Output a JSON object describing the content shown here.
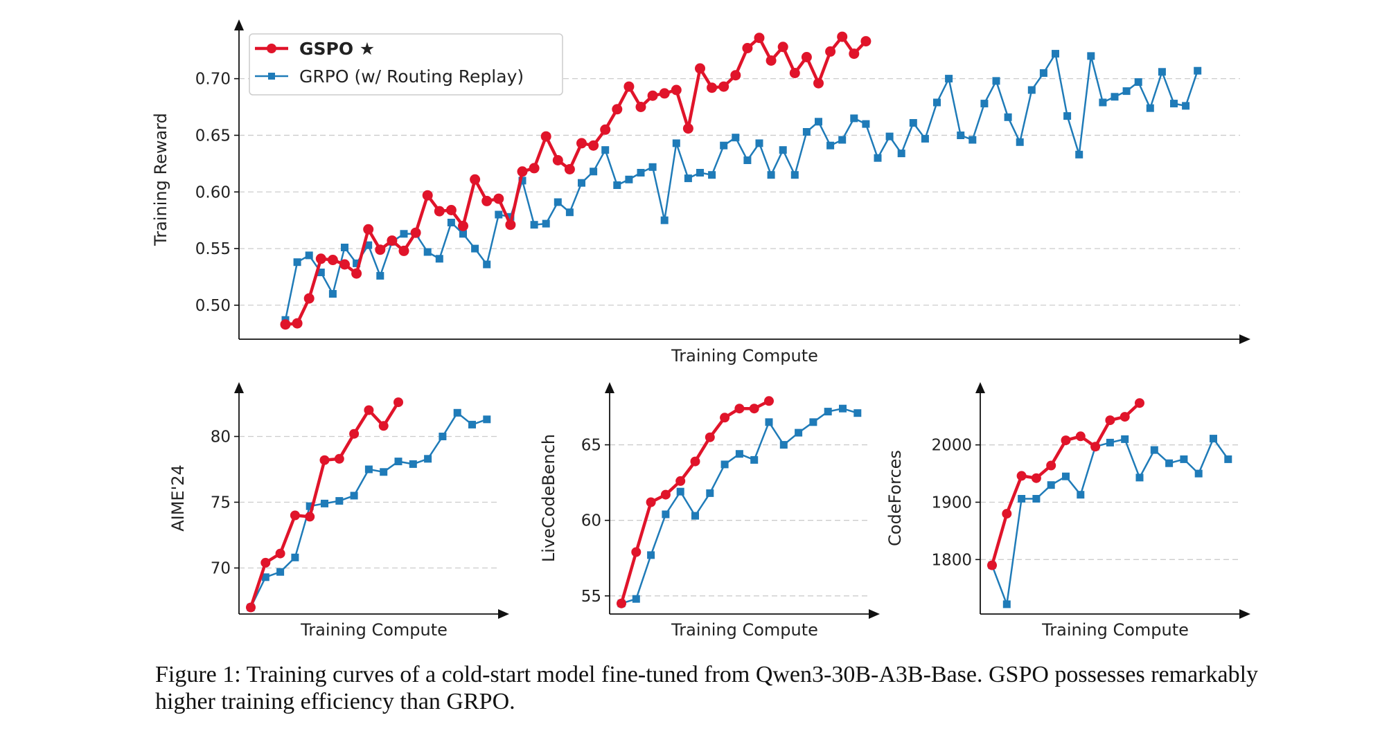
{
  "colors": {
    "gspo": "#e0142a",
    "grpo": "#1f7bb8",
    "axis": "#111111",
    "grid": "#cccccc"
  },
  "caption": "Figure 1: Training curves of a cold-start model fine-tuned from Qwen3-30B-A3B-Base. GSPO possesses remarkably higher training efficiency than GRPO.",
  "legend": {
    "gspo_label": "GSPO ★",
    "grpo_label": "GRPO (w/ Routing Replay)"
  },
  "chart_data": [
    {
      "type": "line",
      "xlabel": "Training Compute",
      "ylabel": "Training Reward",
      "ylim": [
        0.47,
        0.745
      ],
      "yticks": [
        0.5,
        0.55,
        0.6,
        0.65,
        0.7
      ],
      "ytick_labels": [
        "0.50",
        "0.55",
        "0.60",
        "0.65",
        "0.70"
      ],
      "grid": "horizontal-dashed",
      "legend_position": "top-left",
      "series": [
        {
          "name": "GSPO ★",
          "values": [
            0.483,
            0.484,
            0.506,
            0.541,
            0.54,
            0.536,
            0.528,
            0.567,
            0.549,
            0.557,
            0.548,
            0.564,
            0.597,
            0.583,
            0.584,
            0.57,
            0.611,
            0.592,
            0.594,
            0.571,
            0.618,
            0.621,
            0.649,
            0.628,
            0.62,
            0.643,
            0.641,
            0.655,
            0.673,
            0.693,
            0.675,
            0.685,
            0.687,
            0.69,
            0.656,
            0.709,
            0.692,
            0.693,
            0.703,
            0.727,
            0.736,
            0.716,
            0.728,
            0.705,
            0.719,
            0.696,
            0.724,
            0.737,
            0.722,
            0.733
          ]
        },
        {
          "name": "GRPO (w/ Routing Replay)",
          "values": [
            0.487,
            0.538,
            0.544,
            0.529,
            0.51,
            0.551,
            0.537,
            0.553,
            0.526,
            0.556,
            0.563,
            0.563,
            0.547,
            0.541,
            0.573,
            0.563,
            0.55,
            0.536,
            0.58,
            0.578,
            0.61,
            0.571,
            0.572,
            0.591,
            0.582,
            0.608,
            0.618,
            0.637,
            0.606,
            0.611,
            0.617,
            0.622,
            0.575,
            0.643,
            0.612,
            0.617,
            0.615,
            0.641,
            0.648,
            0.628,
            0.643,
            0.615,
            0.637,
            0.615,
            0.653,
            0.662,
            0.641,
            0.646,
            0.665,
            0.66,
            0.63,
            0.649,
            0.634,
            0.661,
            0.647,
            0.679,
            0.7,
            0.65,
            0.646,
            0.678,
            0.698,
            0.666,
            0.644,
            0.69,
            0.705,
            0.722,
            0.667,
            0.633,
            0.72,
            0.679,
            0.684,
            0.689,
            0.697,
            0.674,
            0.706,
            0.678,
            0.676,
            0.707
          ]
        }
      ]
    },
    {
      "type": "line",
      "xlabel": "Training Compute",
      "ylabel": "AIME'24",
      "ylim": [
        66.5,
        83.5
      ],
      "yticks": [
        70,
        75,
        80
      ],
      "ytick_labels": [
        "70",
        "75",
        "80"
      ],
      "grid": "horizontal-dashed",
      "series": [
        {
          "name": "GSPO ★",
          "values": [
            67.0,
            70.4,
            71.1,
            74.0,
            73.9,
            78.2,
            78.3,
            80.2,
            82.0,
            80.8,
            82.6
          ]
        },
        {
          "name": "GRPO (w/ Routing Replay)",
          "values": [
            67.0,
            69.3,
            69.7,
            70.8,
            74.7,
            74.9,
            75.1,
            75.5,
            77.5,
            77.3,
            78.1,
            77.9,
            78.3,
            80.0,
            81.8,
            80.9,
            81.3
          ]
        }
      ]
    },
    {
      "type": "line",
      "xlabel": "Training Compute",
      "ylabel": "LiveCodeBench",
      "ylim": [
        53.8,
        68.6
      ],
      "yticks": [
        55,
        60,
        65
      ],
      "ytick_labels": [
        "55",
        "60",
        "65"
      ],
      "grid": "horizontal-dashed",
      "series": [
        {
          "name": "GSPO ★",
          "values": [
            54.5,
            57.9,
            61.2,
            61.7,
            62.6,
            63.9,
            65.5,
            66.8,
            67.4,
            67.4,
            67.9
          ]
        },
        {
          "name": "GRPO (w/ Routing Replay)",
          "values": [
            54.5,
            54.8,
            57.7,
            60.4,
            61.9,
            60.3,
            61.8,
            63.7,
            64.4,
            64.0,
            66.5,
            65.0,
            65.8,
            66.5,
            67.2,
            67.4,
            67.1
          ]
        }
      ]
    },
    {
      "type": "line",
      "xlabel": "Training Compute",
      "ylabel": "CodeForces",
      "ylim": [
        1705,
        2095
      ],
      "yticks": [
        1800,
        1900,
        2000
      ],
      "ytick_labels": [
        "1800",
        "1900",
        "2000"
      ],
      "grid": "horizontal-dashed",
      "series": [
        {
          "name": "GSPO ★",
          "values": [
            1790,
            1880,
            1946,
            1942,
            1964,
            2008,
            2015,
            1997,
            2043,
            2049,
            2073
          ]
        },
        {
          "name": "GRPO (w/ Routing Replay)",
          "values": [
            1790,
            1722,
            1906,
            1906,
            1930,
            1945,
            1913,
            1997,
            2004,
            2010,
            1943,
            1991,
            1968,
            1975,
            1950,
            2011,
            1975
          ]
        }
      ]
    }
  ]
}
